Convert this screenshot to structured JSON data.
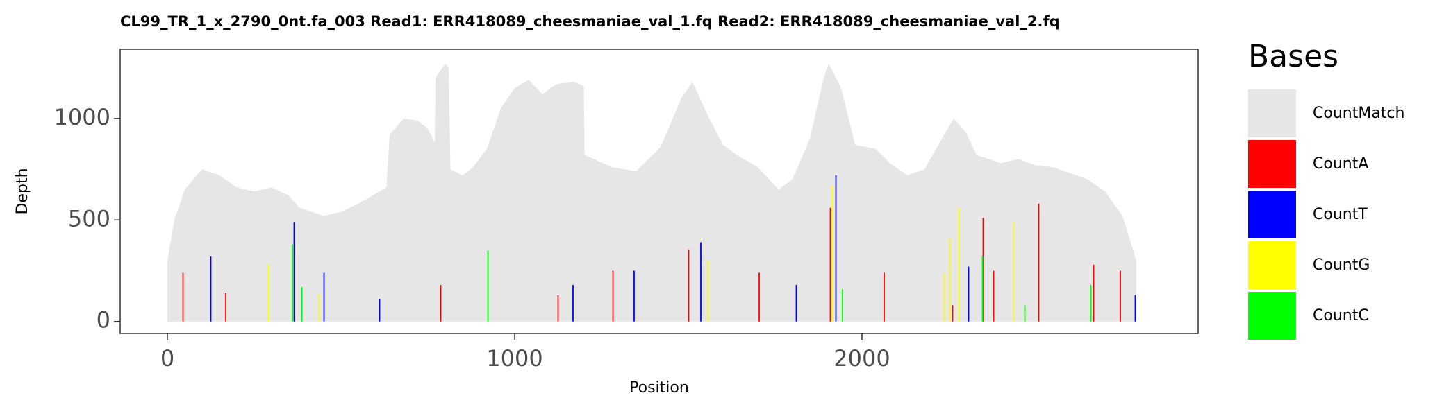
{
  "chart_data": {
    "type": "coverage",
    "title": "CL99_TR_1_x_2790_0nt.fa_003   Read1: ERR418089_cheesmaniae_val_1.fq   Read2: ERR418089_cheesmaniae_val_2.fq",
    "x_label": "Position",
    "y_label": "Depth",
    "xlim": [
      -136,
      2968
    ],
    "ylim": [
      -59,
      1341
    ],
    "xticks": [
      0,
      1000,
      2000
    ],
    "yticks": [
      0,
      500,
      1000
    ],
    "grid": false,
    "legend_title": "Bases",
    "legend_position": "right",
    "series": [
      {
        "name": "CountMatch",
        "color": "#e6e6e6",
        "mark": "area",
        "x": [
          0,
          20,
          50,
          100,
          150,
          200,
          250,
          300,
          350,
          380,
          450,
          500,
          550,
          600,
          631,
          640,
          680,
          720,
          750,
          770,
          772,
          800,
          810,
          815,
          850,
          880,
          920,
          960,
          1000,
          1040,
          1080,
          1120,
          1170,
          1199,
          1201,
          1280,
          1350,
          1420,
          1480,
          1512,
          1560,
          1600,
          1640,
          1700,
          1760,
          1800,
          1850,
          1890,
          1904,
          1940,
          1980,
          2040,
          2080,
          2130,
          2180,
          2230,
          2264,
          2300,
          2330,
          2400,
          2450,
          2500,
          2550,
          2600,
          2650,
          2700,
          2750,
          2790
        ],
        "values": [
          300,
          500,
          650,
          750,
          720,
          660,
          640,
          660,
          620,
          560,
          520,
          540,
          580,
          630,
          660,
          920,
          1000,
          990,
          950,
          880,
          1200,
          1270,
          1250,
          750,
          720,
          760,
          850,
          1050,
          1150,
          1190,
          1120,
          1170,
          1180,
          1160,
          820,
          760,
          740,
          860,
          1100,
          1180,
          1000,
          870,
          820,
          760,
          650,
          700,
          900,
          1200,
          1270,
          1150,
          870,
          850,
          780,
          720,
          750,
          900,
          1000,
          930,
          820,
          780,
          800,
          770,
          760,
          730,
          700,
          640,
          520,
          300
        ]
      },
      {
        "name": "CountA",
        "color": "#ff0000",
        "mark": "bar",
        "x": [
          45,
          168,
          787,
          1125,
          1283,
          1501,
          1704,
          1909,
          2064,
          2261,
          2349,
          2379,
          2509,
          2667,
          2744
        ],
        "values": [
          240,
          140,
          180,
          130,
          250,
          355,
          240,
          560,
          240,
          80,
          510,
          250,
          580,
          280,
          250
        ]
      },
      {
        "name": "CountT",
        "color": "#0000ff",
        "mark": "bar",
        "x": [
          125,
          365,
          451,
          611,
          1168,
          1344,
          1536,
          1811,
          1925,
          2307,
          2787
        ],
        "values": [
          320,
          490,
          240,
          110,
          180,
          250,
          390,
          180,
          720,
          270,
          130
        ]
      },
      {
        "name": "CountG",
        "color": "#ffff00",
        "mark": "bar",
        "x": [
          291,
          437,
          1557,
          1915,
          2237,
          2253,
          2280,
          2437
        ],
        "values": [
          280,
          140,
          300,
          670,
          240,
          410,
          560,
          490
        ]
      },
      {
        "name": "CountC",
        "color": "#00ff00",
        "mark": "bar",
        "x": [
          360,
          387,
          923,
          1944,
          2347,
          2469,
          2659
        ],
        "values": [
          380,
          170,
          350,
          160,
          320,
          80,
          180
        ]
      }
    ]
  }
}
